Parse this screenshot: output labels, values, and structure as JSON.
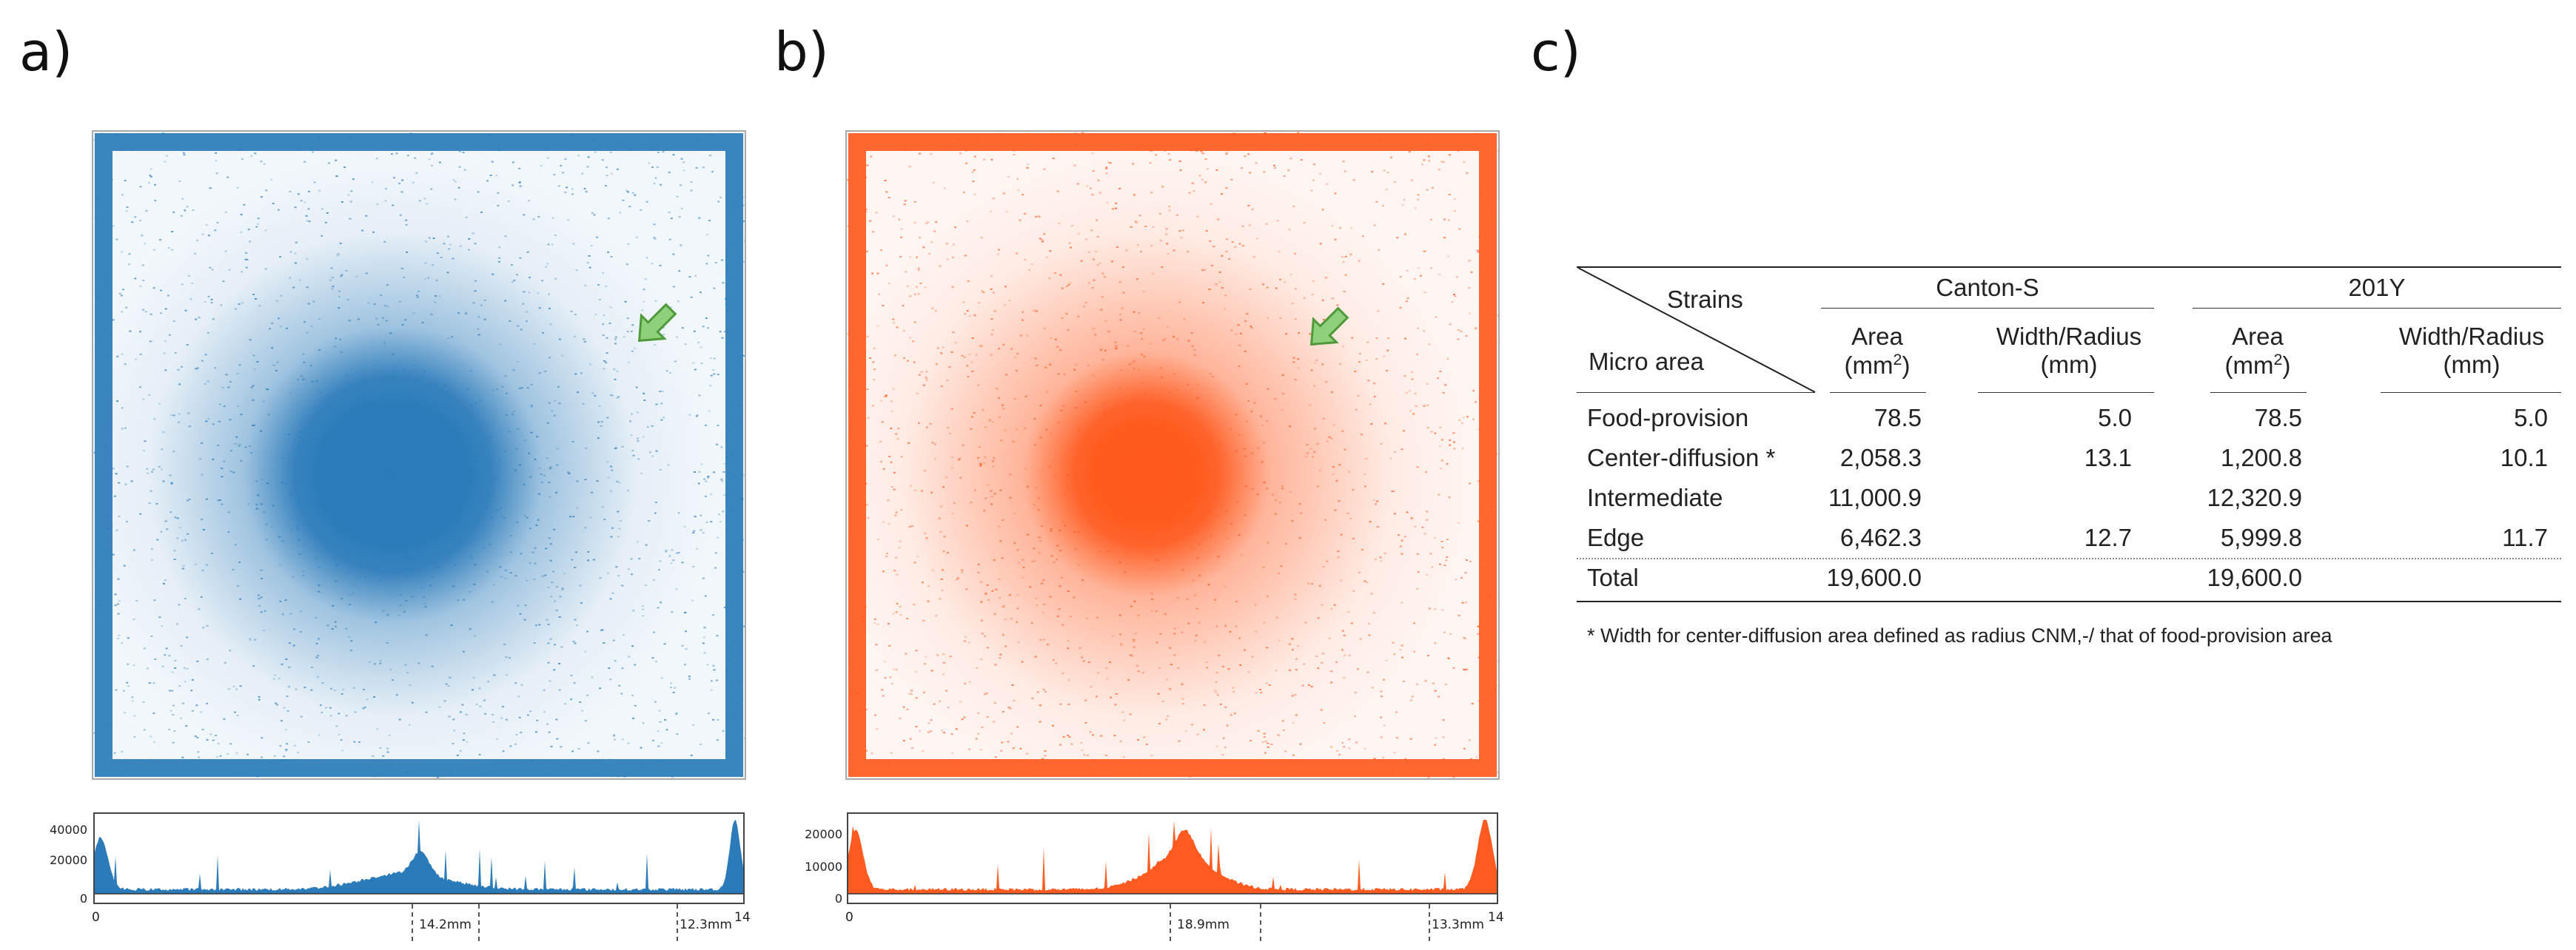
{
  "panels": {
    "a": {
      "label": "a)",
      "color": "#2b7bba",
      "hist_y_ticks": [
        "40000",
        "20000",
        "0"
      ],
      "hist_x_start": "0",
      "hist_x_end": "14",
      "marker_1": "14.2mm",
      "marker_2": "12.3mm"
    },
    "b": {
      "label": "b)",
      "color": "#ff5a1f",
      "hist_y_ticks": [
        "20000",
        "10000",
        "0"
      ],
      "hist_x_start": "0",
      "hist_x_end": "14",
      "marker_1": "18.9mm",
      "marker_2": "13.3mm"
    },
    "c": {
      "label": "c)"
    }
  },
  "arrow_color": "#8fd07a",
  "table": {
    "header": {
      "strains": "Strains",
      "micro_area": "Micro area",
      "strain_1": "Canton-S",
      "strain_2": "201Y",
      "area": "Area",
      "area_unit": "(mm",
      "area_unit_sup": "2",
      "area_unit_close": ")",
      "width_radius": "Width/Radius",
      "width_unit": "(mm)"
    },
    "rows": [
      {
        "name": "Food-provision",
        "cs_area": "78.5",
        "cs_width": "5.0",
        "y_area": "78.5",
        "y_width": "5.0"
      },
      {
        "name": "Center-diffusion *",
        "cs_area": "2,058.3",
        "cs_width": "13.1",
        "y_area": "1,200.8",
        "y_width": "10.1"
      },
      {
        "name": "Intermediate",
        "cs_area": "11,000.9",
        "cs_width": "",
        "y_area": "12,320.9",
        "y_width": ""
      },
      {
        "name": "Edge",
        "cs_area": "6,462.3",
        "cs_width": "12.7",
        "y_area": "5,999.8",
        "y_width": "11.7"
      },
      {
        "name": "Total",
        "cs_area": "19,600.0",
        "cs_width": "",
        "y_area": "19,600.0",
        "y_width": ""
      }
    ],
    "footnote": "* Width for center-diffusion area defined as radius CNM,-/  that of food-provision area"
  }
}
